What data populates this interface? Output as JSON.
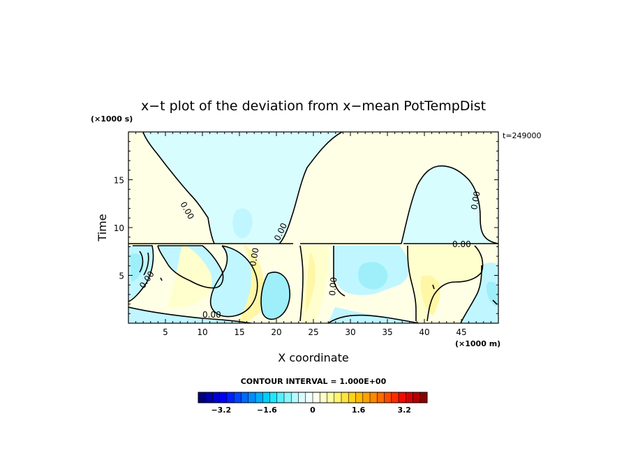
{
  "chart_data": {
    "type": "heatmap",
    "title": "x−t plot of the deviation from x−mean PotTempDist",
    "time_stamp": "t=249000",
    "xlabel": "X coordinate",
    "ylabel": "Time",
    "x_unit": "(×1000 m)",
    "y_unit": "(×1000 s)",
    "xlim": [
      0,
      50
    ],
    "ylim": [
      0,
      20
    ],
    "x_ticks": [
      5,
      10,
      15,
      20,
      25,
      30,
      35,
      40,
      45
    ],
    "y_ticks": [
      5,
      10,
      15
    ],
    "x_tick_labels": [
      "5",
      "10",
      "15",
      "20",
      "25",
      "30",
      "35",
      "40",
      "45"
    ],
    "y_tick_labels": [
      "5",
      "10",
      "15"
    ],
    "contour_interval_label": "CONTOUR INTERVAL = 1.000E+00",
    "contour_labels": [
      "0.00",
      "0.00",
      "0.00",
      "0.00",
      "0.00",
      "0.00",
      "0.00",
      "0.00"
    ],
    "colorbar": {
      "min": -4,
      "max": 4,
      "tick_values": [
        -3.2,
        -1.6,
        0,
        1.6,
        3.2
      ],
      "tick_labels": [
        "−3.2",
        "−1.6",
        "0",
        "1.6",
        "3.2"
      ],
      "colors": [
        "#00007f",
        "#0000a8",
        "#0000d0",
        "#0000f5",
        "#0020ff",
        "#0045ff",
        "#0068ff",
        "#008cff",
        "#00adff",
        "#00cfff",
        "#20e6ff",
        "#55f0ff",
        "#88f6ff",
        "#b5faff",
        "#d8fdff",
        "#f2ffff",
        "#ffffea",
        "#ffffcc",
        "#ffff9e",
        "#fff570",
        "#ffe440",
        "#ffd21a",
        "#ffbb00",
        "#ffa200",
        "#ff8800",
        "#ff6a00",
        "#ff4a00",
        "#ff2a00",
        "#f00a00",
        "#d40000",
        "#b00000",
        "#8c0000"
      ]
    },
    "zero_contour_fraction_note": "",
    "fill_colors": {
      "light_cyan": "#d3fbff",
      "cyan": "#c0f6ff",
      "deep_cyan": "#9eeffa",
      "light_yellow": "#ffffe6",
      "yellow": "#ffffcd",
      "deep_yellow": "#fff7a6"
    }
  }
}
